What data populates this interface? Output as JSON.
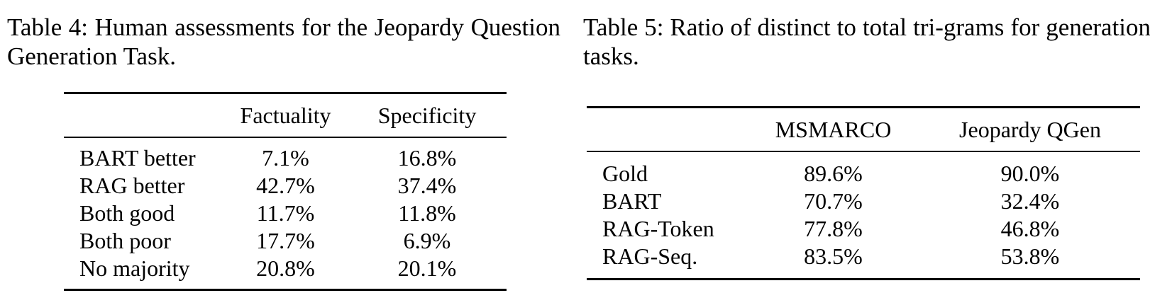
{
  "table4": {
    "caption": "Table 4: Human assessments for the Jeopardy Question Generation Task.",
    "columns": [
      "",
      "Factuality",
      "Specificity"
    ],
    "rows": [
      {
        "label": "BART better",
        "factuality": "7.1%",
        "specificity": "16.8%"
      },
      {
        "label": "RAG better",
        "factuality": "42.7%",
        "specificity": "37.4%"
      },
      {
        "label": "Both good",
        "factuality": "11.7%",
        "specificity": "11.8%"
      },
      {
        "label": "Both poor",
        "factuality": "17.7%",
        "specificity": "6.9%"
      },
      {
        "label": "No majority",
        "factuality": "20.8%",
        "specificity": "20.1%"
      }
    ]
  },
  "table5": {
    "caption": "Table 5: Ratio of distinct to total tri-grams for generation tasks.",
    "columns": [
      "",
      "MSMARCO",
      "Jeopardy QGen"
    ],
    "rows": [
      {
        "label": "Gold",
        "msmarco": "89.6%",
        "jeopardy": "90.0%"
      },
      {
        "label": "BART",
        "msmarco": "70.7%",
        "jeopardy": "32.4%"
      },
      {
        "label": "RAG-Token",
        "msmarco": "77.8%",
        "jeopardy": "46.8%"
      },
      {
        "label": "RAG-Seq.",
        "msmarco": "83.5%",
        "jeopardy": "53.8%"
      }
    ]
  }
}
